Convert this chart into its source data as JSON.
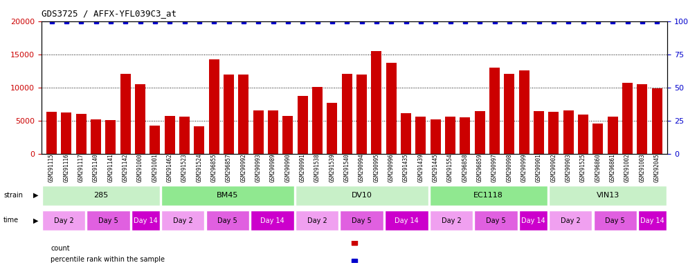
{
  "title": "GDS3725 / AFFX-YFL039C3_at",
  "samples": [
    "GSM291115",
    "GSM291116",
    "GSM291117",
    "GSM291140",
    "GSM291141",
    "GSM291142",
    "GSM291000",
    "GSM291001",
    "GSM291462",
    "GSM291523",
    "GSM291524",
    "GSM296855",
    "GSM296857",
    "GSM290992",
    "GSM290993",
    "GSM290989",
    "GSM290990",
    "GSM290991",
    "GSM291538",
    "GSM291539",
    "GSM291540",
    "GSM290994",
    "GSM290995",
    "GSM290996",
    "GSM291435",
    "GSM291439",
    "GSM291445",
    "GSM291554",
    "GSM296858",
    "GSM296859",
    "GSM290997",
    "GSM290998",
    "GSM290999",
    "GSM290901",
    "GSM290902",
    "GSM290903",
    "GSM291525",
    "GSM296860",
    "GSM296861",
    "GSM291002",
    "GSM291003",
    "GSM292045"
  ],
  "counts": [
    6300,
    6200,
    6000,
    5200,
    5100,
    12100,
    10500,
    4200,
    5700,
    5600,
    4100,
    14200,
    12000,
    11900,
    6500,
    6500,
    5700,
    8700,
    10100,
    7700,
    12100,
    11900,
    15500,
    13700,
    6100,
    5600,
    5200,
    5600,
    5500,
    6400,
    13000,
    12100,
    12600,
    6400,
    6300,
    6500,
    5900,
    4600,
    5600,
    10700,
    10500,
    9900
  ],
  "percentile_ranks": [
    100,
    100,
    100,
    100,
    100,
    100,
    100,
    100,
    100,
    100,
    100,
    100,
    100,
    100,
    100,
    100,
    100,
    100,
    100,
    100,
    100,
    100,
    100,
    100,
    100,
    100,
    100,
    100,
    100,
    100,
    100,
    100,
    100,
    100,
    100,
    100,
    100,
    100,
    100,
    100,
    100,
    100
  ],
  "strains": [
    {
      "label": "285",
      "start": 0,
      "end": 8,
      "color": "#c8f0c8"
    },
    {
      "label": "BM45",
      "start": 8,
      "end": 17,
      "color": "#90e890"
    },
    {
      "label": "DV10",
      "start": 17,
      "end": 26,
      "color": "#c8f0c8"
    },
    {
      "label": "EC1118",
      "start": 26,
      "end": 34,
      "color": "#90e890"
    },
    {
      "label": "VIN13",
      "start": 34,
      "end": 42,
      "color": "#c8f0c8"
    }
  ],
  "time_groups": [
    {
      "label": "Day 2",
      "start": 0,
      "end": 3,
      "color": "#f0a0f0"
    },
    {
      "label": "Day 5",
      "start": 3,
      "end": 6,
      "color": "#e060e0"
    },
    {
      "label": "Day 14",
      "start": 6,
      "end": 8,
      "color": "#cc00cc"
    },
    {
      "label": "Day 2",
      "start": 8,
      "end": 11,
      "color": "#f0a0f0"
    },
    {
      "label": "Day 5",
      "start": 11,
      "end": 14,
      "color": "#e060e0"
    },
    {
      "label": "Day 14",
      "start": 14,
      "end": 17,
      "color": "#cc00cc"
    },
    {
      "label": "Day 2",
      "start": 17,
      "end": 20,
      "color": "#f0a0f0"
    },
    {
      "label": "Day 5",
      "start": 20,
      "end": 23,
      "color": "#e060e0"
    },
    {
      "label": "Day 14",
      "start": 23,
      "end": 26,
      "color": "#cc00cc"
    },
    {
      "label": "Day 2",
      "start": 26,
      "end": 29,
      "color": "#f0a0f0"
    },
    {
      "label": "Day 5",
      "start": 29,
      "end": 32,
      "color": "#e060e0"
    },
    {
      "label": "Day 14",
      "start": 32,
      "end": 34,
      "color": "#cc00cc"
    },
    {
      "label": "Day 2",
      "start": 34,
      "end": 37,
      "color": "#f0a0f0"
    },
    {
      "label": "Day 5",
      "start": 37,
      "end": 40,
      "color": "#e060e0"
    },
    {
      "label": "Day 14",
      "start": 40,
      "end": 42,
      "color": "#cc00cc"
    }
  ],
  "bar_color": "#cc0000",
  "percentile_color": "#0000cc",
  "ylim_left": [
    0,
    20000
  ],
  "ylim_right": [
    0,
    100
  ],
  "yticks_left": [
    0,
    5000,
    10000,
    15000,
    20000
  ],
  "yticks_right": [
    0,
    25,
    50,
    75,
    100
  ],
  "bg_color": "#f5f5f5",
  "title_color": "#333333",
  "axis_label_color": "#cc0000",
  "right_axis_color": "#0000cc"
}
